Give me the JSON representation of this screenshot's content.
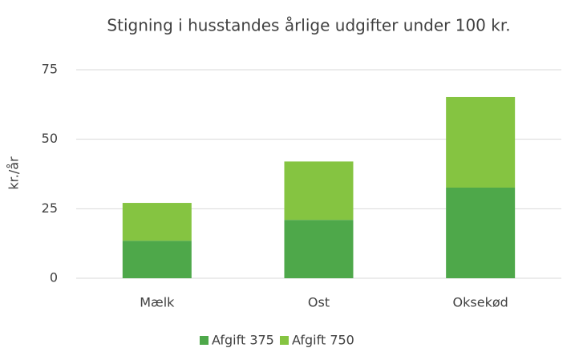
{
  "chart_data": {
    "type": "stacked_bar",
    "title": "Stigning i husstandes årlige udgifter under 100 kr.",
    "y_label": "kr./år",
    "categories": [
      "Mælk",
      "Ost",
      "Oksekød"
    ],
    "series": [
      {
        "name": "Afgift 375",
        "color": "#4ea84a",
        "values": [
          13.5,
          21,
          32.6
        ]
      },
      {
        "name": "Afgift 750",
        "color": "#85c441",
        "values": [
          13.6,
          21,
          32.6
        ]
      }
    ],
    "ylim": [
      0,
      75
    ],
    "yticks": [
      0,
      25,
      50,
      75
    ],
    "grid": true,
    "legend": "bottom"
  }
}
